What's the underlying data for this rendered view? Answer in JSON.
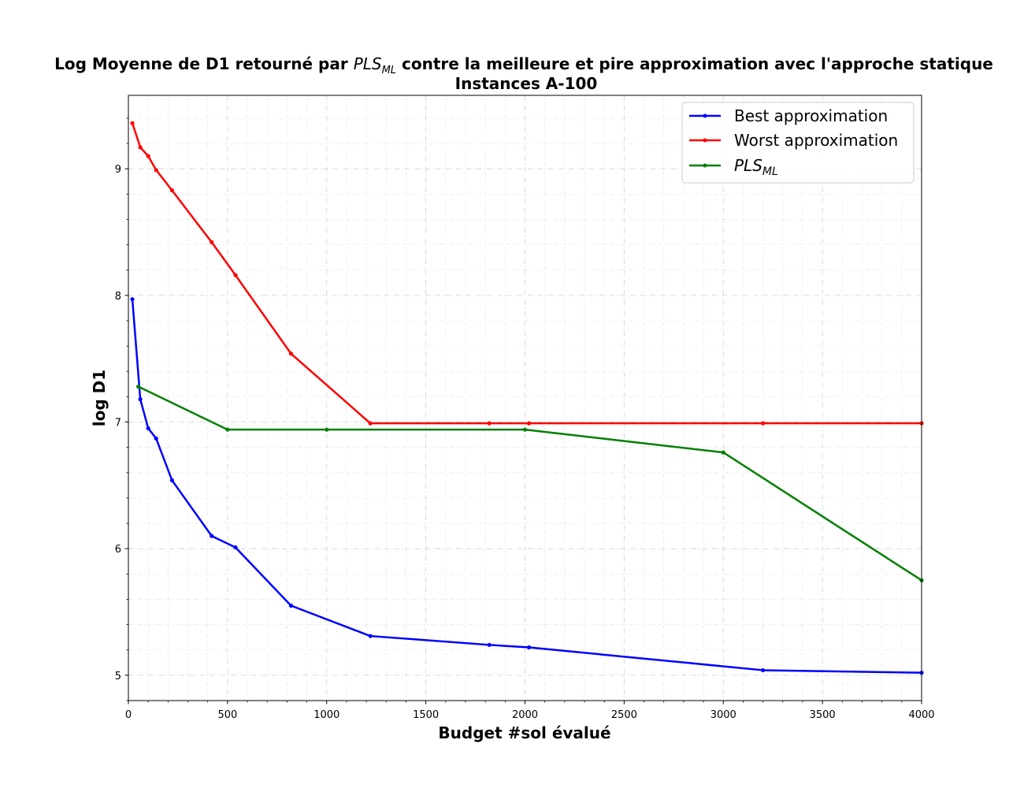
{
  "chart_data": {
    "type": "line",
    "title": {
      "prefix": "Log Moyenne de D1 retourné par ",
      "math_base": "PLS",
      "math_sub": "ML",
      "suffix": " contre la meilleure et pire approximation avec l'approche statique",
      "line2": "Instances  A-100"
    },
    "xlabel": "Budget #sol évalué",
    "ylabel": "log D1",
    "xlim": [
      0,
      4000
    ],
    "ylim": [
      4.8,
      9.58
    ],
    "x_ticks": [
      0,
      500,
      1000,
      1500,
      2000,
      2500,
      3000,
      3500,
      4000
    ],
    "y_ticks": [
      5,
      6,
      7,
      8,
      9
    ],
    "grid": true,
    "legend_position": "top-right",
    "series": [
      {
        "name": "Best approximation",
        "color": "#0000ff",
        "x": [
          20,
          60,
          100,
          140,
          220,
          420,
          540,
          820,
          1220,
          1820,
          2020,
          3200,
          4000
        ],
        "y": [
          7.97,
          7.18,
          6.95,
          6.87,
          6.54,
          6.1,
          6.01,
          5.55,
          5.31,
          5.24,
          5.22,
          5.04,
          5.02
        ]
      },
      {
        "name": "Worst approximation",
        "color": "#ff0000",
        "x": [
          20,
          60,
          100,
          140,
          220,
          420,
          540,
          820,
          1220,
          1820,
          2020,
          3200,
          4000
        ],
        "y": [
          9.36,
          9.17,
          9.1,
          8.99,
          8.83,
          8.42,
          8.16,
          7.54,
          6.99,
          6.99,
          6.99,
          6.99,
          6.99
        ]
      },
      {
        "name_base": "PLS",
        "name_sub": "ML",
        "color": "#008000",
        "x": [
          50,
          500,
          1000,
          2000,
          3000,
          4000
        ],
        "y": [
          7.28,
          6.94,
          6.94,
          6.94,
          6.76,
          5.75
        ]
      }
    ]
  }
}
